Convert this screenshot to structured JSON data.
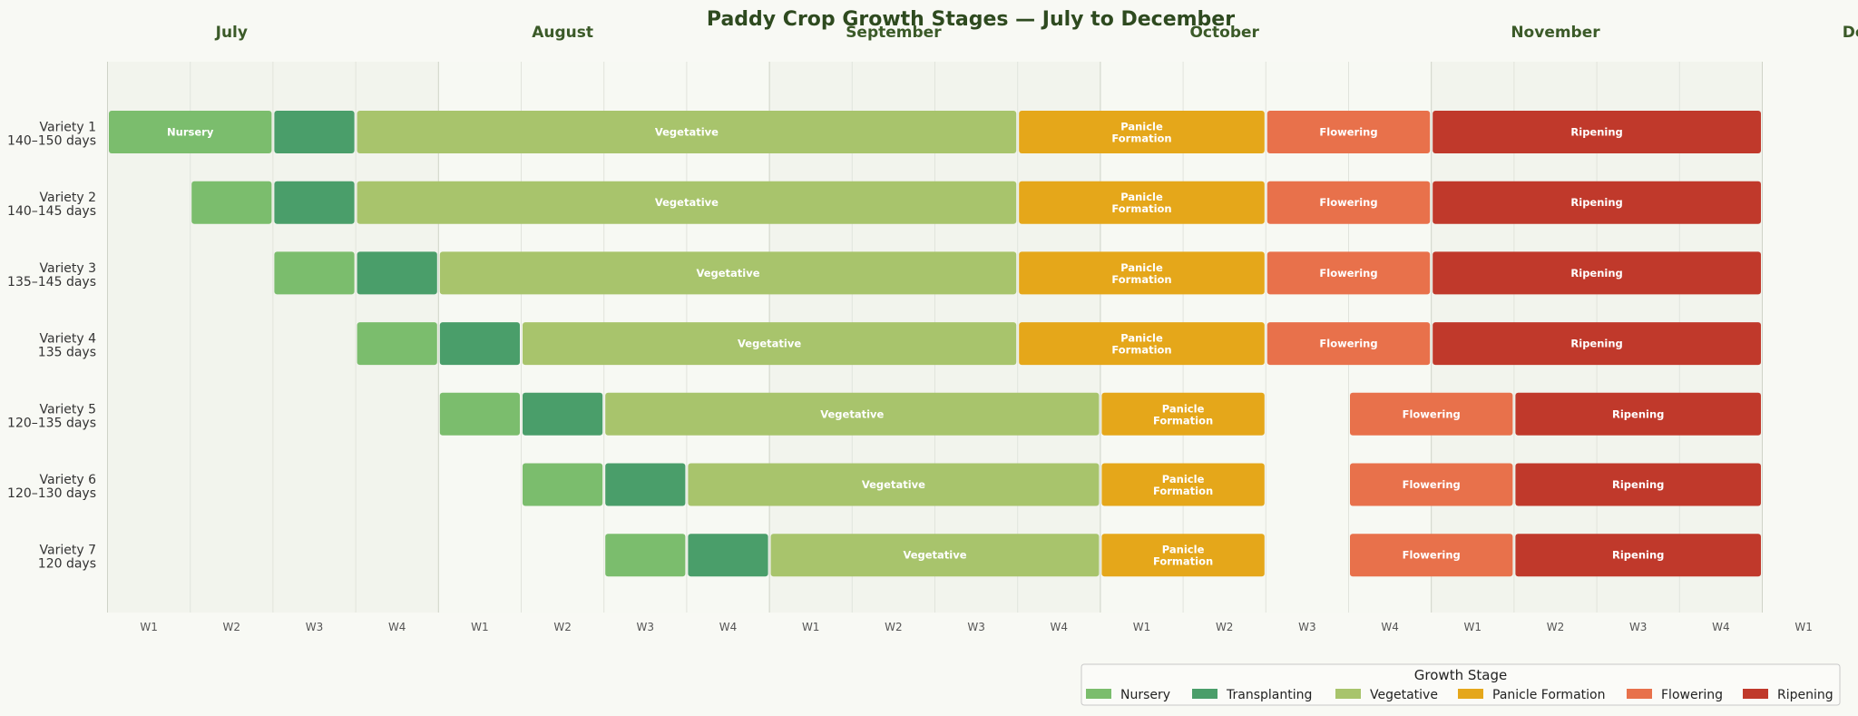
{
  "chart_data": {
    "type": "gantt",
    "title": "Paddy Crop Growth Stages — July to December",
    "months": [
      "July",
      "August",
      "September",
      "October",
      "November",
      "December"
    ],
    "week_ticks": [
      "W1",
      "W2",
      "W3",
      "W4",
      "W1",
      "W2",
      "W3",
      "W4",
      "W1",
      "W2",
      "W3",
      "W4",
      "W1",
      "W2",
      "W3",
      "W4",
      "W1",
      "W2",
      "W3",
      "W4",
      "W1"
    ],
    "legend_title": "Growth Stage",
    "stages": [
      {
        "key": "nursery",
        "name": "Nursery",
        "color": "#7bbd6d"
      },
      {
        "key": "transplanting",
        "name": "Transplanting",
        "color": "#4a9e6a"
      },
      {
        "key": "vegetative",
        "name": "Vegetative",
        "color": "#a8c46c"
      },
      {
        "key": "panicle",
        "name": "Panicle Formation",
        "color": "#e5a71a"
      },
      {
        "key": "flowering",
        "name": "Flowering",
        "color": "#e8714b"
      },
      {
        "key": "ripening",
        "name": "Ripening",
        "color": "#c0392b"
      }
    ],
    "varieties": [
      {
        "name": "Variety 1",
        "duration": "140–150 days",
        "bars": [
          {
            "stage": "nursery",
            "start": 0,
            "end": 2,
            "label": "Nursery"
          },
          {
            "stage": "transplanting",
            "start": 2,
            "end": 3,
            "label": ""
          },
          {
            "stage": "vegetative",
            "start": 3,
            "end": 11,
            "label": "Vegetative"
          },
          {
            "stage": "panicle",
            "start": 11,
            "end": 14,
            "label": "Panicle\nFormation"
          },
          {
            "stage": "flowering",
            "start": 14,
            "end": 16,
            "label": "Flowering"
          },
          {
            "stage": "ripening",
            "start": 16,
            "end": 20,
            "label": "Ripening"
          }
        ]
      },
      {
        "name": "Variety 2",
        "duration": "140–145 days",
        "bars": [
          {
            "stage": "nursery",
            "start": 1,
            "end": 2,
            "label": ""
          },
          {
            "stage": "transplanting",
            "start": 2,
            "end": 3,
            "label": ""
          },
          {
            "stage": "vegetative",
            "start": 3,
            "end": 11,
            "label": "Vegetative"
          },
          {
            "stage": "panicle",
            "start": 11,
            "end": 14,
            "label": "Panicle\nFormation"
          },
          {
            "stage": "flowering",
            "start": 14,
            "end": 16,
            "label": "Flowering"
          },
          {
            "stage": "ripening",
            "start": 16,
            "end": 20,
            "label": "Ripening"
          }
        ]
      },
      {
        "name": "Variety 3",
        "duration": "135–145 days",
        "bars": [
          {
            "stage": "nursery",
            "start": 2,
            "end": 3,
            "label": ""
          },
          {
            "stage": "transplanting",
            "start": 3,
            "end": 4,
            "label": ""
          },
          {
            "stage": "vegetative",
            "start": 4,
            "end": 11,
            "label": "Vegetative"
          },
          {
            "stage": "panicle",
            "start": 11,
            "end": 14,
            "label": "Panicle\nFormation"
          },
          {
            "stage": "flowering",
            "start": 14,
            "end": 16,
            "label": "Flowering"
          },
          {
            "stage": "ripening",
            "start": 16,
            "end": 20,
            "label": "Ripening"
          }
        ]
      },
      {
        "name": "Variety 4",
        "duration": "135 days",
        "bars": [
          {
            "stage": "nursery",
            "start": 3,
            "end": 4,
            "label": ""
          },
          {
            "stage": "transplanting",
            "start": 4,
            "end": 5,
            "label": ""
          },
          {
            "stage": "vegetative",
            "start": 5,
            "end": 11,
            "label": "Vegetative"
          },
          {
            "stage": "panicle",
            "start": 11,
            "end": 14,
            "label": "Panicle\nFormation"
          },
          {
            "stage": "flowering",
            "start": 14,
            "end": 16,
            "label": "Flowering"
          },
          {
            "stage": "ripening",
            "start": 16,
            "end": 20,
            "label": "Ripening"
          }
        ]
      },
      {
        "name": "Variety 5",
        "duration": "120–135 days",
        "bars": [
          {
            "stage": "nursery",
            "start": 4,
            "end": 5,
            "label": ""
          },
          {
            "stage": "transplanting",
            "start": 5,
            "end": 6,
            "label": ""
          },
          {
            "stage": "vegetative",
            "start": 6,
            "end": 12,
            "label": "Vegetative"
          },
          {
            "stage": "panicle",
            "start": 12,
            "end": 14,
            "label": "Panicle\nFormation"
          },
          {
            "stage": "flowering",
            "start": 15,
            "end": 17,
            "label": "Flowering"
          },
          {
            "stage": "ripening",
            "start": 17,
            "end": 20,
            "label": "Ripening"
          }
        ]
      },
      {
        "name": "Variety 6",
        "duration": "120–130 days",
        "bars": [
          {
            "stage": "nursery",
            "start": 5,
            "end": 6,
            "label": ""
          },
          {
            "stage": "transplanting",
            "start": 6,
            "end": 7,
            "label": ""
          },
          {
            "stage": "vegetative",
            "start": 7,
            "end": 12,
            "label": "Vegetative"
          },
          {
            "stage": "panicle",
            "start": 12,
            "end": 14,
            "label": "Panicle\nFormation"
          },
          {
            "stage": "flowering",
            "start": 15,
            "end": 17,
            "label": "Flowering"
          },
          {
            "stage": "ripening",
            "start": 17,
            "end": 20,
            "label": "Ripening"
          }
        ]
      },
      {
        "name": "Variety 7",
        "duration": "120 days",
        "bars": [
          {
            "stage": "nursery",
            "start": 6,
            "end": 7,
            "label": ""
          },
          {
            "stage": "transplanting",
            "start": 7,
            "end": 8,
            "label": ""
          },
          {
            "stage": "vegetative",
            "start": 8,
            "end": 12,
            "label": "Vegetative"
          },
          {
            "stage": "panicle",
            "start": 12,
            "end": 14,
            "label": "Panicle\nFormation"
          },
          {
            "stage": "flowering",
            "start": 15,
            "end": 17,
            "label": "Flowering"
          },
          {
            "stage": "ripening",
            "start": 17,
            "end": 20,
            "label": "Ripening"
          }
        ]
      }
    ]
  }
}
